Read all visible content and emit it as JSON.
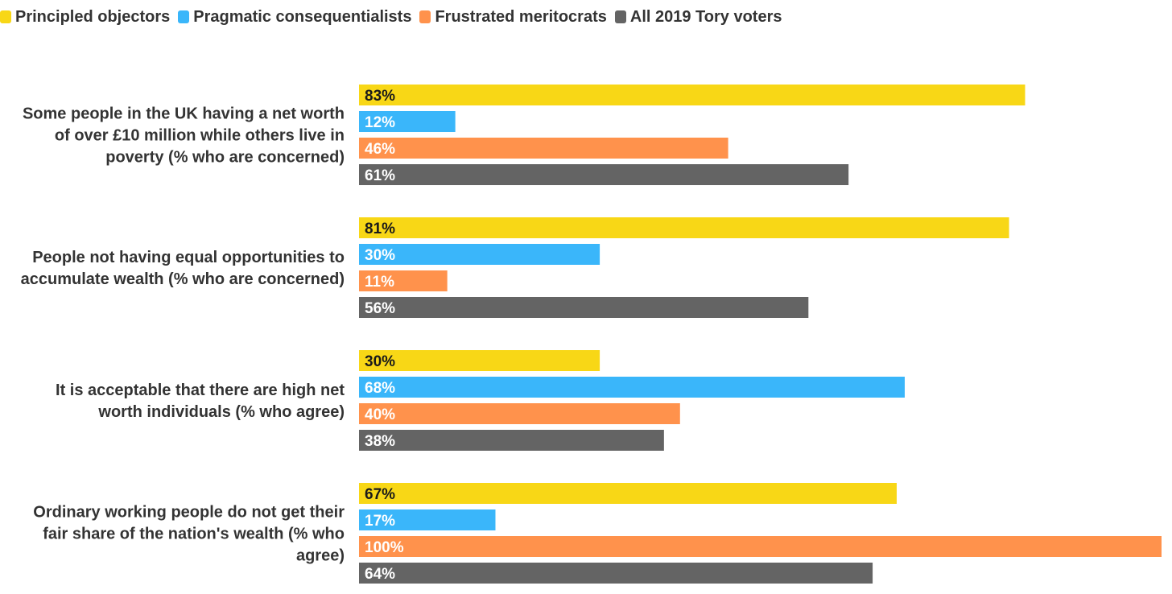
{
  "chart_data": {
    "type": "bar",
    "orientation": "horizontal",
    "title": "",
    "xlabel": "",
    "ylabel": "",
    "xlim": [
      0,
      100
    ],
    "grid": false,
    "legend_position": "top-left",
    "value_suffix": "%",
    "categories": [
      [
        "Some people in the UK having a net worth",
        "of over £10 million while others live in",
        "poverty (% who are concerned)"
      ],
      [
        "People not having equal opportunities to",
        "accumulate wealth (% who are concerned)"
      ],
      [
        "It is acceptable that there are high net",
        "worth individuals (% who agree)"
      ],
      [
        "Ordinary working people do not get their",
        "fair share of the nation's wealth (% who",
        "agree)"
      ]
    ],
    "series": [
      {
        "name": "Principled objectors",
        "color": "#F8D716",
        "label_color": "#1a1a1a",
        "values": [
          83,
          81,
          30,
          67
        ]
      },
      {
        "name": "Pragmatic consequentialists",
        "color": "#3AB6FA",
        "label_color": "#ffffff",
        "values": [
          12,
          30,
          68,
          17
        ]
      },
      {
        "name": "Frustrated meritocrats",
        "color": "#FF924C",
        "label_color": "#ffffff",
        "values": [
          46,
          11,
          40,
          100
        ]
      },
      {
        "name": "All 2019 Tory voters",
        "color": "#646464",
        "label_color": "#ffffff",
        "values": [
          61,
          56,
          38,
          64
        ]
      }
    ]
  }
}
